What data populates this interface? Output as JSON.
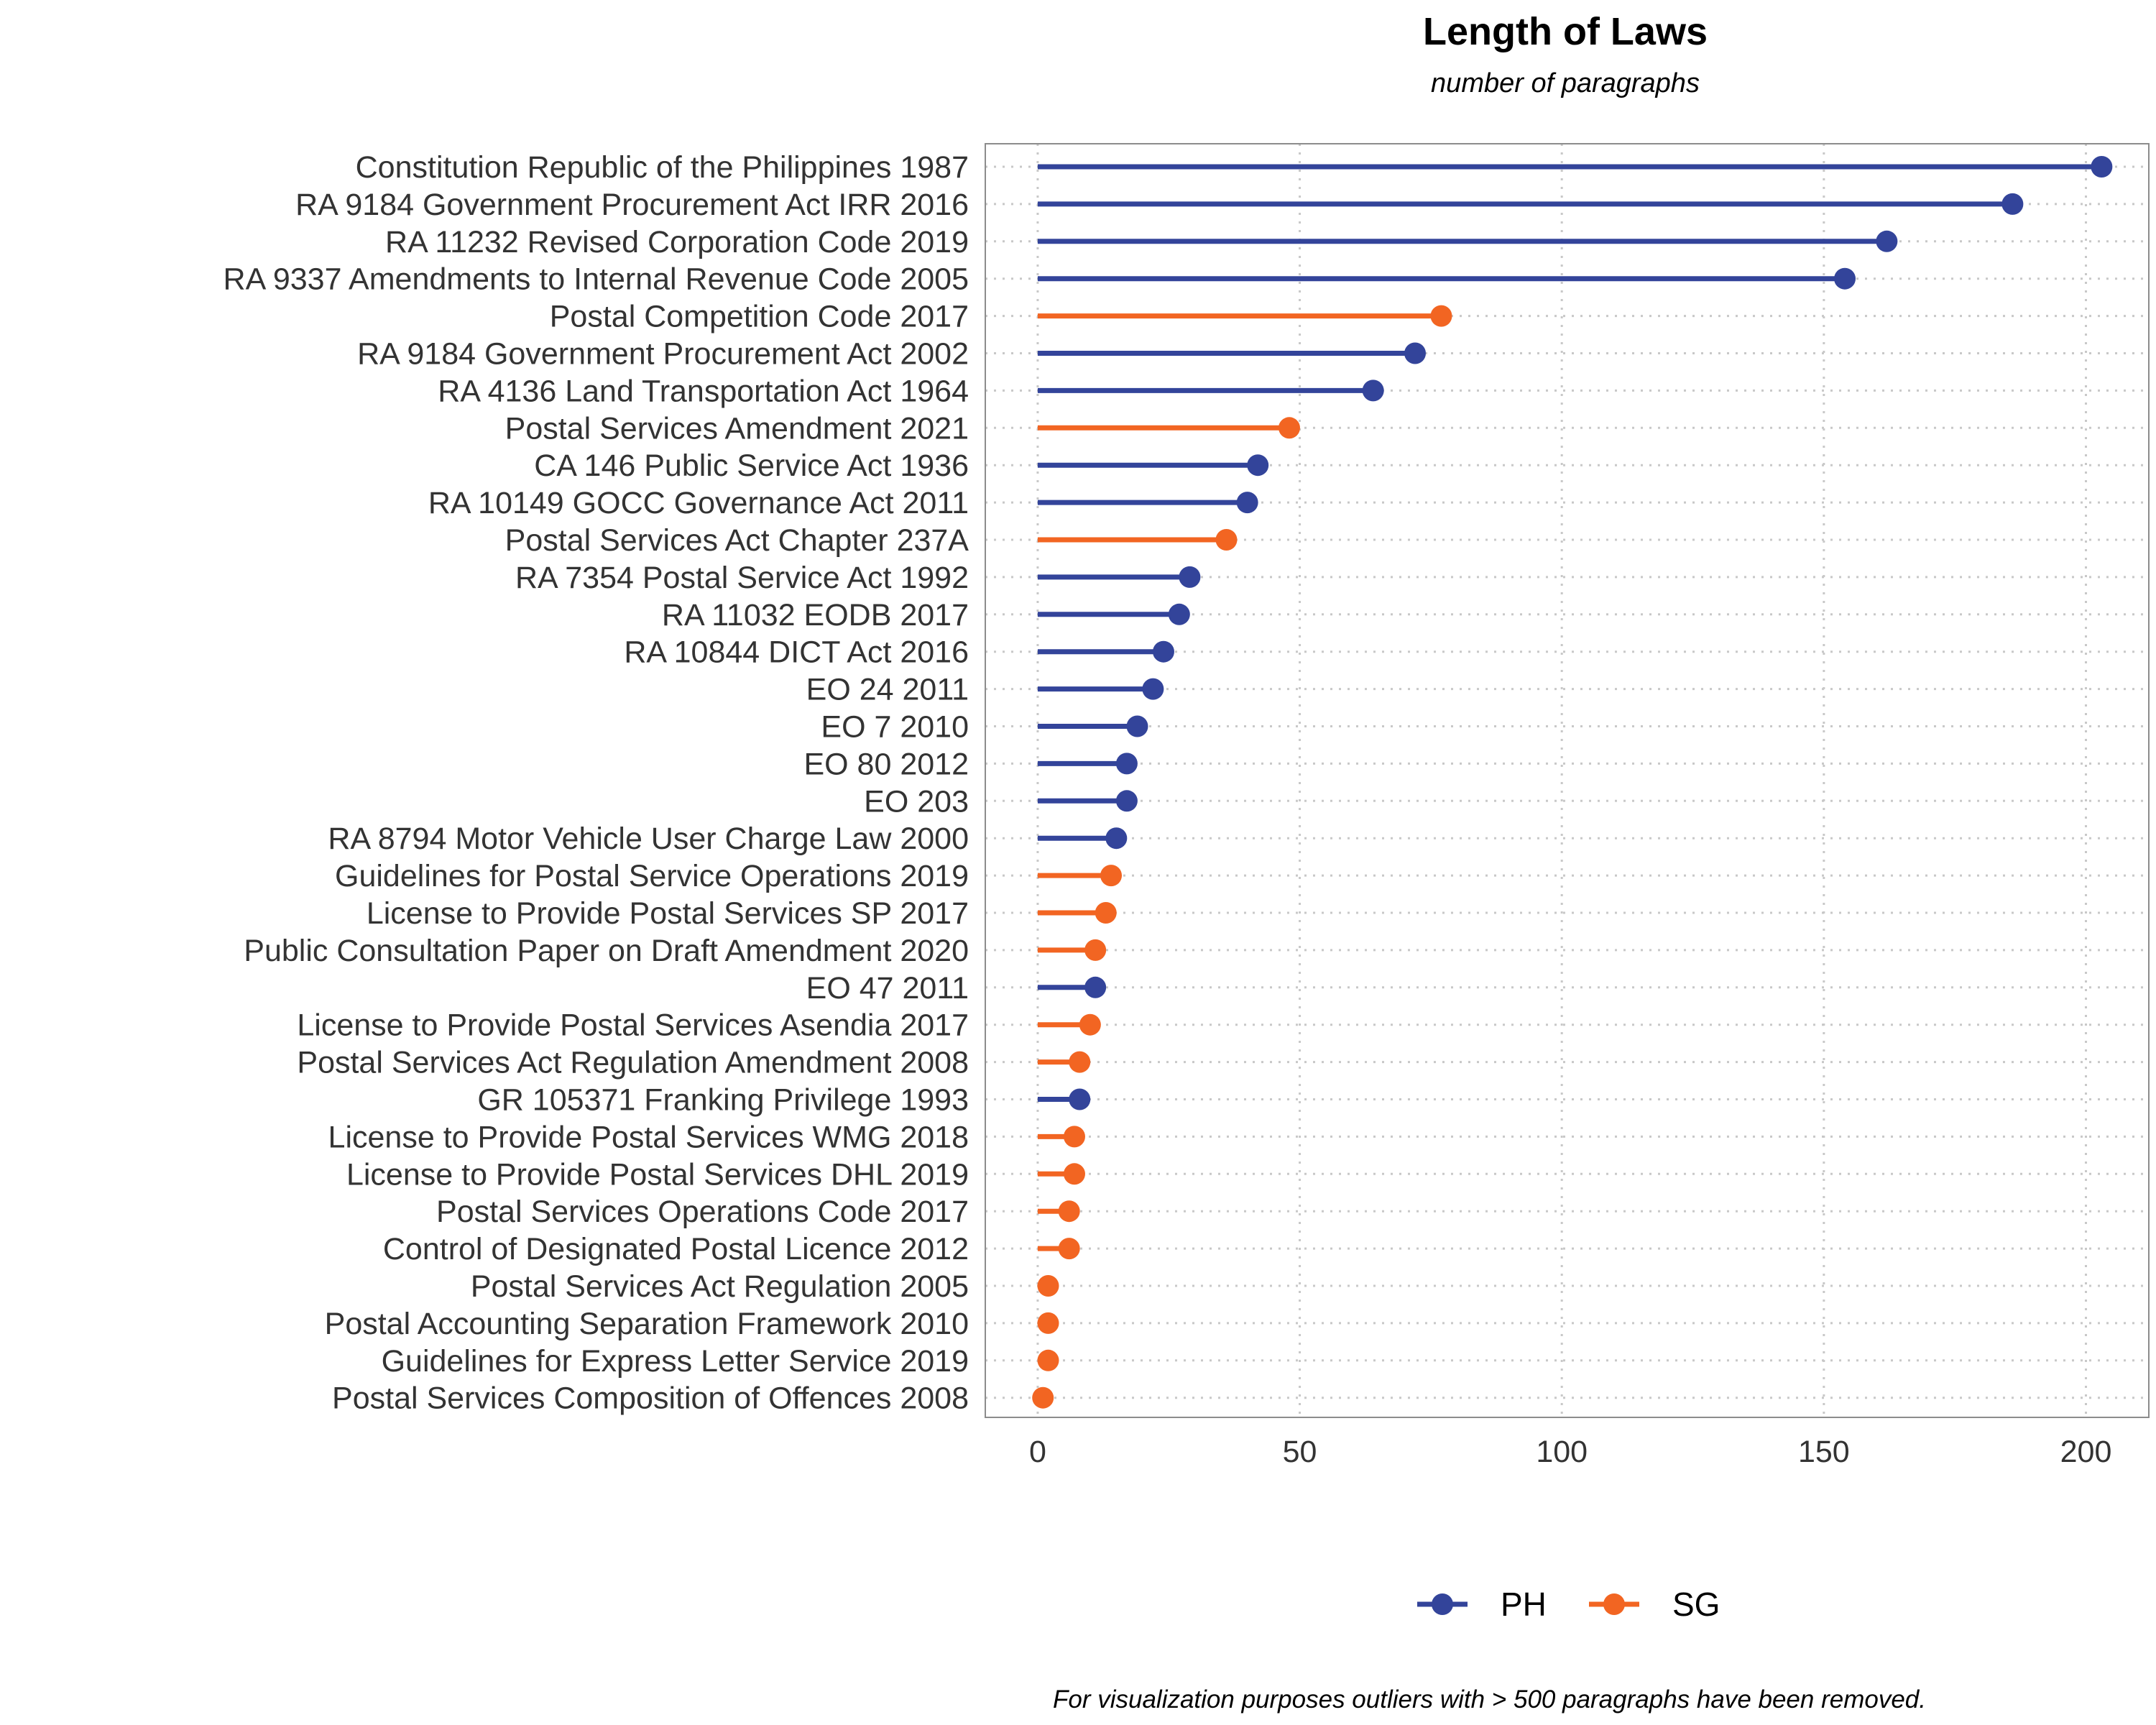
{
  "chart_data": {
    "type": "lollipop",
    "title": "Length of Laws",
    "subtitle": "number of paragraphs",
    "caption": "For visualization purposes outliers with > 500 paragraphs have been removed.",
    "xlim": [
      -10,
      212
    ],
    "x_ticks": [
      0,
      50,
      100,
      150,
      200
    ],
    "grid": true,
    "legend_position": "bottom",
    "colors": {
      "PH": "#33449a",
      "SG": "#f26522"
    },
    "series": [
      {
        "name": "PH"
      },
      {
        "name": "SG"
      }
    ],
    "points": [
      {
        "label": "Constitution Republic of the Philippines 1987",
        "value": 203,
        "group": "PH"
      },
      {
        "label": "RA 9184 Government Procurement Act IRR 2016",
        "value": 186,
        "group": "PH"
      },
      {
        "label": "RA 11232 Revised Corporation Code 2019",
        "value": 162,
        "group": "PH"
      },
      {
        "label": "RA 9337 Amendments to Internal Revenue Code 2005",
        "value": 154,
        "group": "PH"
      },
      {
        "label": "Postal Competition Code 2017",
        "value": 77,
        "group": "SG"
      },
      {
        "label": "RA 9184 Government Procurement Act 2002",
        "value": 72,
        "group": "PH"
      },
      {
        "label": "RA 4136 Land Transportation Act 1964",
        "value": 64,
        "group": "PH"
      },
      {
        "label": "Postal Services Amendment 2021",
        "value": 48,
        "group": "SG"
      },
      {
        "label": "CA 146 Public Service Act 1936",
        "value": 42,
        "group": "PH"
      },
      {
        "label": "RA 10149 GOCC Governance Act 2011",
        "value": 40,
        "group": "PH"
      },
      {
        "label": "Postal Services Act Chapter 237A",
        "value": 36,
        "group": "SG"
      },
      {
        "label": "RA 7354 Postal Service Act 1992",
        "value": 29,
        "group": "PH"
      },
      {
        "label": "RA 11032 EODB 2017",
        "value": 27,
        "group": "PH"
      },
      {
        "label": "RA 10844 DICT Act 2016",
        "value": 24,
        "group": "PH"
      },
      {
        "label": "EO 24 2011",
        "value": 22,
        "group": "PH"
      },
      {
        "label": "EO 7 2010",
        "value": 19,
        "group": "PH"
      },
      {
        "label": "EO 80 2012",
        "value": 17,
        "group": "PH"
      },
      {
        "label": "EO 203",
        "value": 17,
        "group": "PH"
      },
      {
        "label": "RA 8794 Motor Vehicle User Charge Law 2000",
        "value": 15,
        "group": "PH"
      },
      {
        "label": "Guidelines for Postal Service Operations 2019",
        "value": 14,
        "group": "SG"
      },
      {
        "label": "License to Provide Postal Services SP 2017",
        "value": 13,
        "group": "SG"
      },
      {
        "label": "Public Consultation Paper on Draft Amendment 2020",
        "value": 11,
        "group": "SG"
      },
      {
        "label": "EO 47 2011",
        "value": 11,
        "group": "PH"
      },
      {
        "label": "License to Provide Postal Services Asendia 2017",
        "value": 10,
        "group": "SG"
      },
      {
        "label": "Postal Services Act Regulation Amendment 2008",
        "value": 8,
        "group": "SG"
      },
      {
        "label": "GR 105371 Franking Privilege 1993",
        "value": 8,
        "group": "PH"
      },
      {
        "label": "License to Provide Postal Services WMG 2018",
        "value": 7,
        "group": "SG"
      },
      {
        "label": "License to Provide Postal Services DHL 2019",
        "value": 7,
        "group": "SG"
      },
      {
        "label": "Postal Services Operations Code 2017",
        "value": 6,
        "group": "SG"
      },
      {
        "label": "Control of Designated Postal Licence 2012",
        "value": 6,
        "group": "SG"
      },
      {
        "label": "Postal Services Act Regulation 2005",
        "value": 2,
        "group": "SG"
      },
      {
        "label": "Postal Accounting Separation Framework 2010",
        "value": 2,
        "group": "SG"
      },
      {
        "label": "Guidelines for Express Letter Service 2019",
        "value": 2,
        "group": "SG"
      },
      {
        "label": "Postal Services Composition of Offences 2008",
        "value": 1,
        "group": "SG"
      }
    ]
  }
}
